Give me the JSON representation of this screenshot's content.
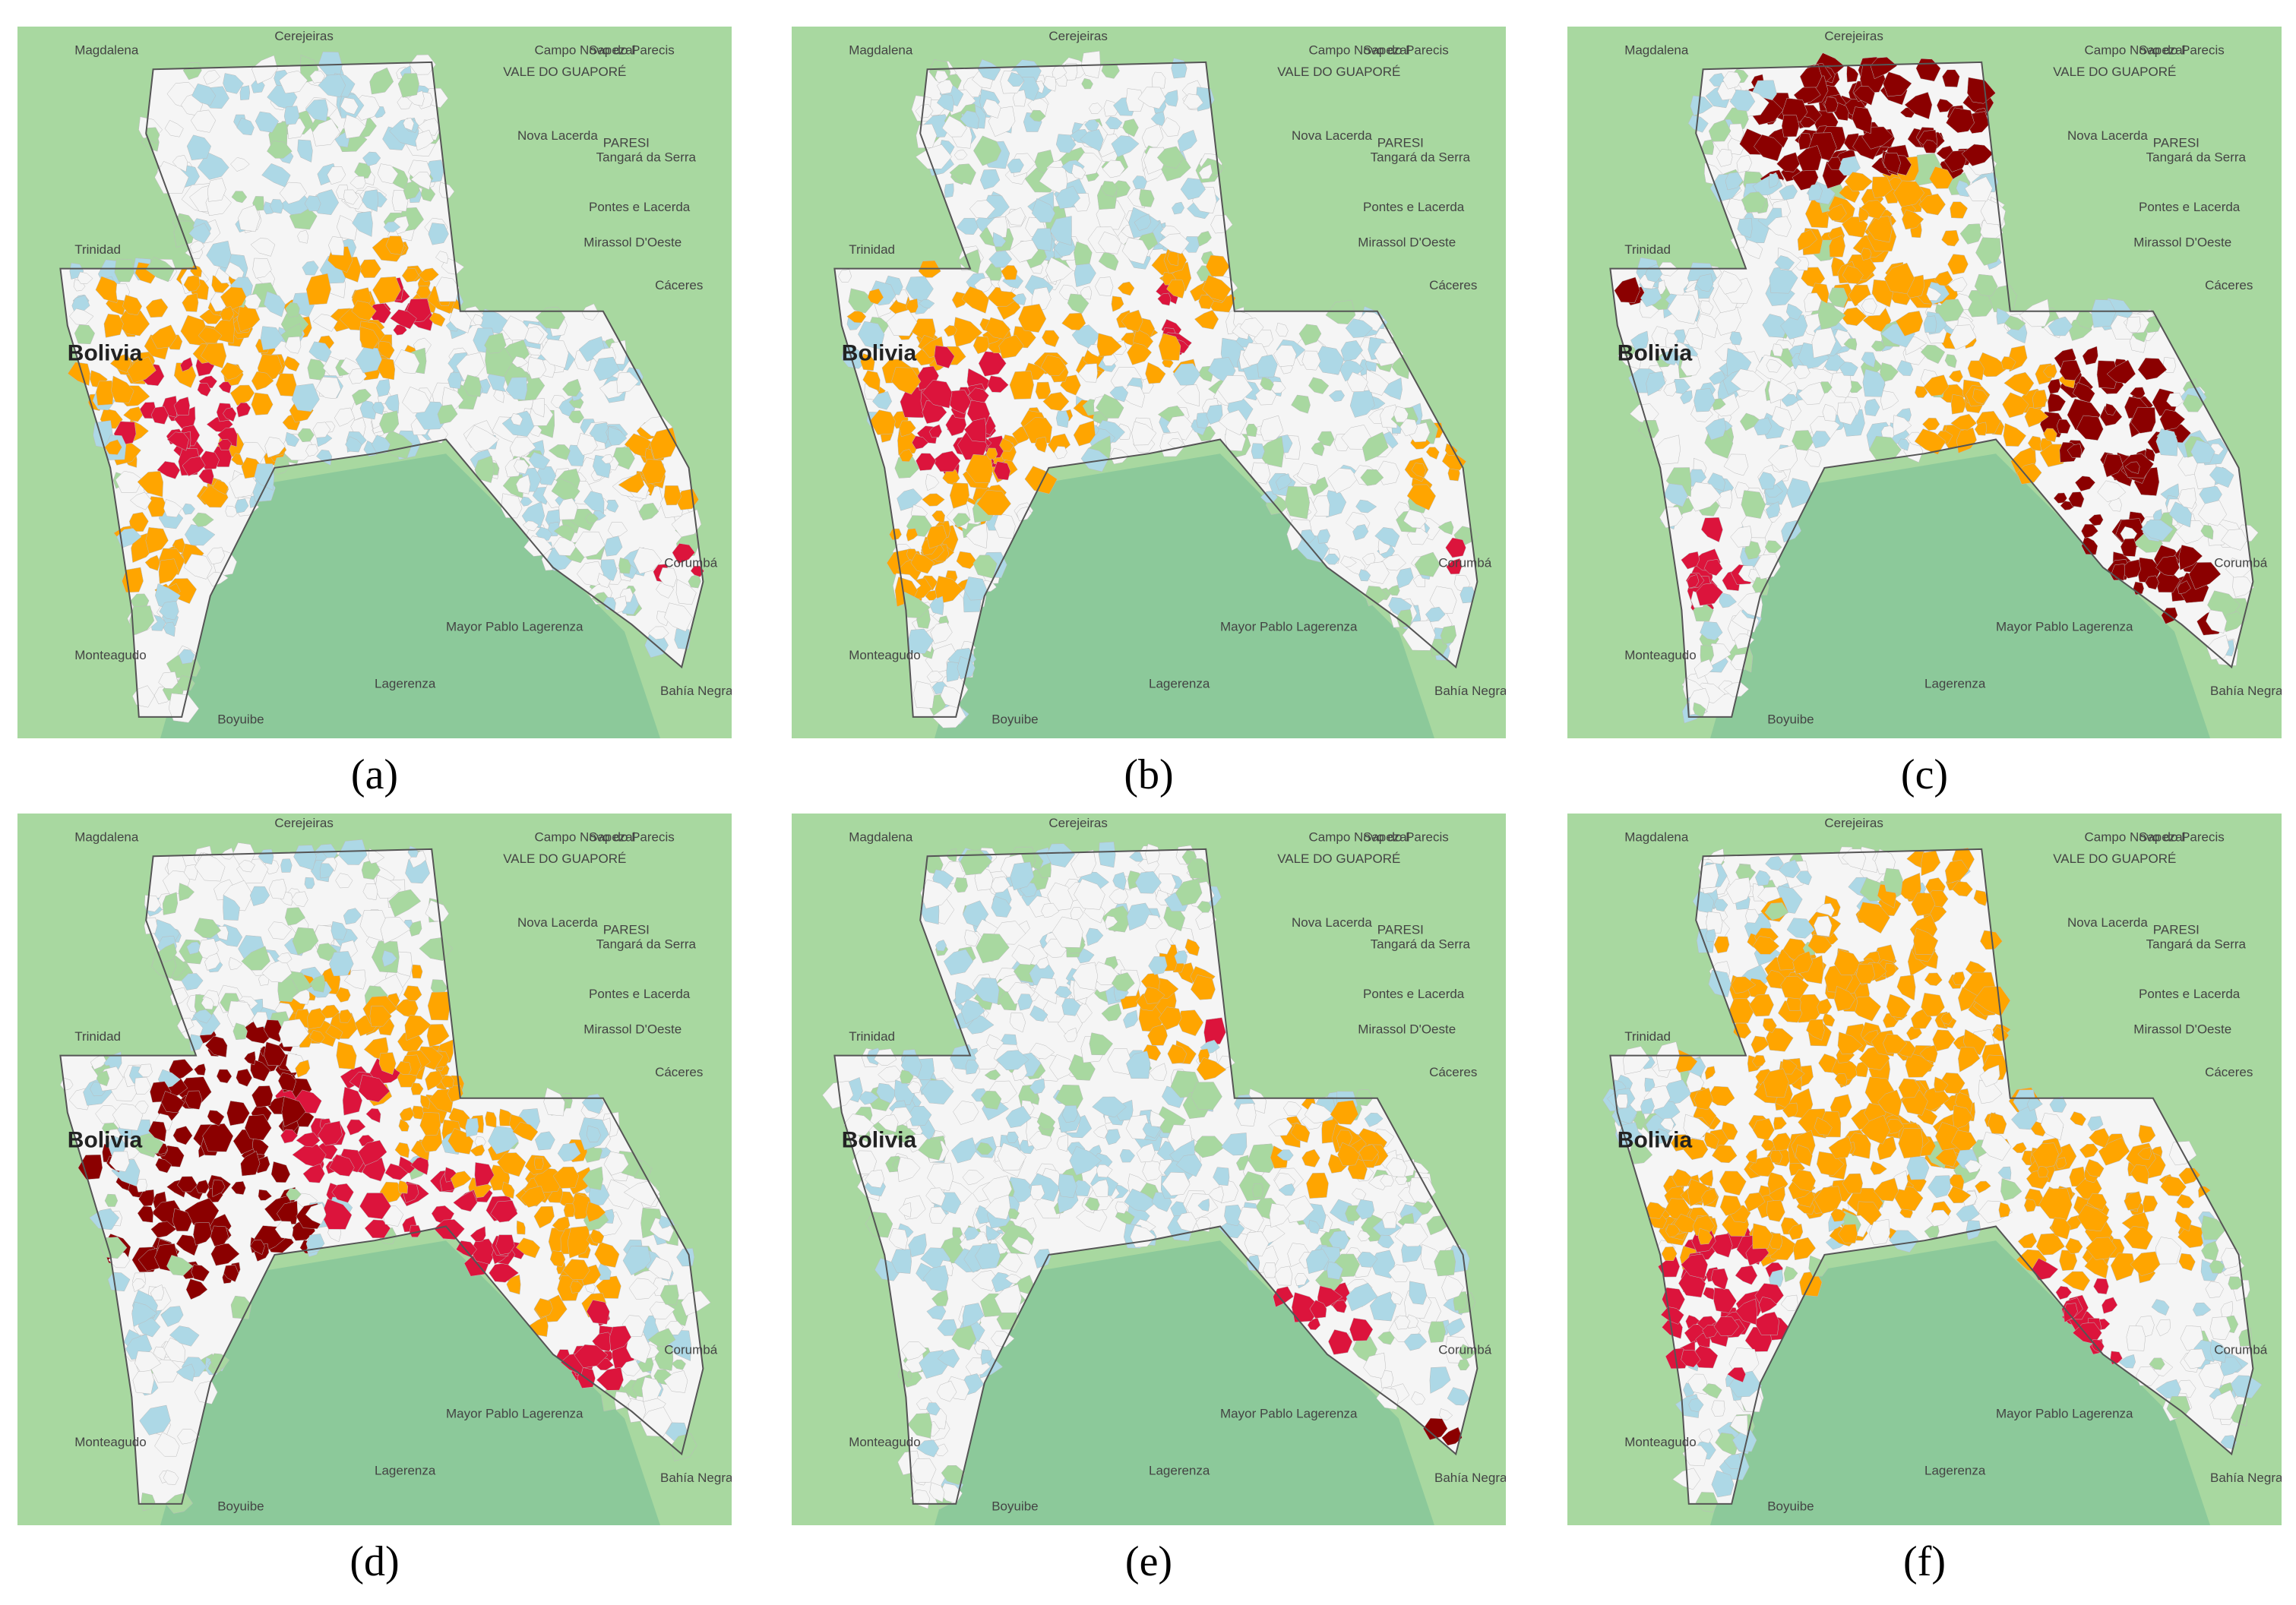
{
  "panels": [
    {
      "label": "(a)"
    },
    {
      "label": "(b)"
    },
    {
      "label": "(c)"
    },
    {
      "label": "(d)"
    },
    {
      "label": "(e)"
    },
    {
      "label": "(f)"
    }
  ],
  "places": [
    "Magdalena",
    "Trinidad",
    "Bolivia",
    "Cerejeiras",
    "VALE DO GUAPORÉ",
    "Sapezal",
    "Campo Novo do Parecis",
    "PARESI",
    "Nova Lacerda",
    "Tangará da Serra",
    "Pontes e Lacerda",
    "Mirassol D'Oeste",
    "Cáceres",
    "Corumbá",
    "Mayor Pablo Lagerenza",
    "Lagerenza",
    "Bahía Negra",
    "Monteagudo",
    "Boyuibe"
  ]
}
